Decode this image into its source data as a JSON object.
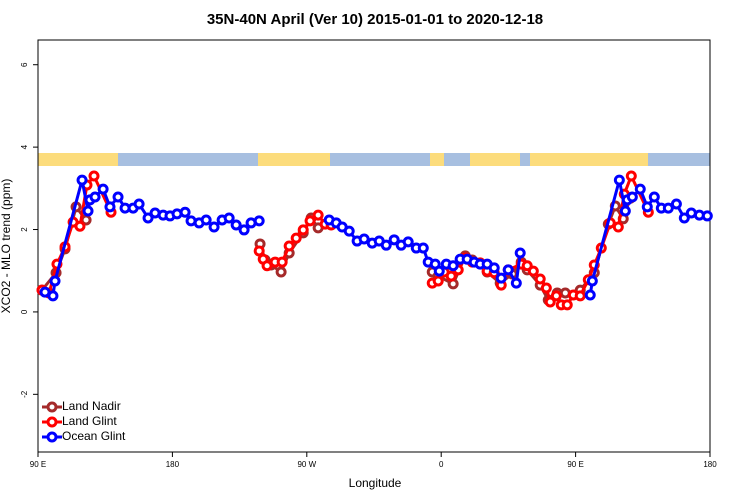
{
  "chart_data": {
    "type": "line",
    "title": "35N-40N April (Ver 10)   2015-01-01 to 2020-12-18",
    "x_label": "Longitude",
    "y_label": "XCO2 - MLO trend (ppm)",
    "xlim": [
      90,
      540
    ],
    "xticks": [
      {
        "value": 90,
        "label": "90 E"
      },
      180,
      {
        "value": 270,
        "label": "90 W"
      },
      {
        "value": 360,
        "label": "0"
      },
      {
        "value": 450,
        "label": "90 E"
      },
      {
        "value": 540,
        "label": "180"
      }
    ],
    "ylim": [
      -3.4,
      6.6
    ],
    "yticks": [
      -2,
      0,
      2,
      4,
      6
    ],
    "legend": "bottom-left",
    "series": [
      {
        "name": "Land Nadir",
        "color": "#a52a2a",
        "x": [
          92.7,
          102.1,
          108.1,
          115.5,
          122.2,
          180,
          238.7,
          242.1,
          246.1,
          252.8,
          258.2,
          267.6,
          272.9,
          277.6,
          286.3,
          380,
          354,
          358,
          368,
          376.1,
          380.8,
          390.8,
          399.5,
          407.6,
          413.6,
          417.6,
          426.3,
          431.7,
          437.7,
          443.1,
          453.1,
          462.5,
          471.9,
          476.6,
          481.9,
          486.6
        ],
        "values": [
          0.53,
          0.95,
          1.53,
          2.55,
          2.23,
          null,
          1.65,
          1.26,
          1.14,
          0.97,
          1.43,
          1.92,
          2.28,
          2.04,
          2.13,
          null,
          0.97,
          0.87,
          0.68,
          1.36,
          1.26,
          0.97,
          0.7,
          0.92,
          1.21,
          1.02,
          0.65,
          0.29,
          0.46,
          0.46,
          0.53,
          0.95,
          2.13,
          2.57,
          2.26,
          2.76
        ]
      },
      {
        "name": "Land Glint",
        "color": "#ff0000",
        "x": [
          92.7,
          97.4,
          102.7,
          108.1,
          113.5,
          118.1,
          122.8,
          127.5,
          138.9,
          190,
          238.1,
          240.8,
          243.4,
          248.8,
          253.5,
          258.2,
          262.9,
          267.6,
          272.2,
          277.6,
          282.3,
          286.3,
          320,
          354,
          358,
          362,
          366.7,
          371.4,
          376.1,
          380.8,
          386.1,
          390.8,
          395.5,
          400.2,
          404.9,
          413.6,
          417.6,
          421.7,
          426.3,
          430.4,
          433,
          437.1,
          440.4,
          444.4,
          448.5,
          453.1,
          458.5,
          462.5,
          467.2,
          473.2,
          478.6,
          482.6,
          487.3,
          498.7
        ],
        "values": [
          0.53,
          0.46,
          1.16,
          1.58,
          2.18,
          2.08,
          3.08,
          3.3,
          2.42,
          null,
          1.48,
          1.28,
          1.12,
          1.21,
          1.21,
          1.6,
          1.79,
          1.99,
          2.21,
          2.35,
          2.13,
          2.11,
          null,
          0.7,
          0.75,
          0.97,
          0.87,
          1.02,
          1.31,
          1.21,
          1.19,
          0.99,
          0.95,
          0.65,
          1.02,
          1.16,
          1.12,
          0.99,
          0.8,
          0.58,
          0.24,
          0.39,
          0.17,
          0.17,
          0.41,
          0.39,
          0.78,
          1.14,
          1.55,
          2.16,
          2.06,
          2.86,
          3.3,
          2.42
        ]
      },
      {
        "name": "Ocean Glint",
        "color": "#0000ff",
        "x": [
          94.7,
          100,
          101.4,
          119.5,
          123.5,
          124.8,
          128.2,
          133.6,
          138.2,
          143.6,
          148.3,
          153.7,
          157.7,
          163.7,
          168.4,
          173.8,
          178.4,
          183.1,
          188.5,
          192.5,
          197.9,
          202.6,
          207.9,
          213.3,
          218,
          222.7,
          228,
          232.7,
          238.1,
          260,
          285,
          289.7,
          293.7,
          298.4,
          303.7,
          308.4,
          313.8,
          318.5,
          323.2,
          328.5,
          333.2,
          337.9,
          343.3,
          348,
          351.3,
          356,
          358.7,
          363.4,
          368,
          372.7,
          377.4,
          382.1,
          386.1,
          390.8,
          395.5,
          400.2,
          404.9,
          410.3,
          412.9,
          440,
          459.8,
          461.2,
          479.3,
          483.3,
          484.6,
          488,
          493.3,
          498,
          502.7,
          507.4,
          512.1,
          517.5,
          522.8,
          527.5,
          532.9,
          538.2
        ],
        "values": [
          0.48,
          0.39,
          0.75,
          3.2,
          2.45,
          2.72,
          2.79,
          2.98,
          2.55,
          2.79,
          2.52,
          2.52,
          2.62,
          2.28,
          2.4,
          2.35,
          2.33,
          2.38,
          2.42,
          2.21,
          2.16,
          2.23,
          2.06,
          2.23,
          2.28,
          2.11,
          1.99,
          2.16,
          2.21,
          null,
          2.23,
          2.16,
          2.06,
          1.96,
          1.72,
          1.77,
          1.67,
          1.72,
          1.62,
          1.75,
          1.62,
          1.7,
          1.55,
          1.55,
          1.21,
          1.16,
          0.99,
          1.16,
          1.12,
          1.28,
          1.28,
          1.21,
          1.16,
          1.16,
          1.07,
          0.82,
          1.02,
          0.7,
          1.43,
          null,
          0.41,
          0.75,
          3.2,
          2.45,
          2.72,
          2.79,
          2.98,
          2.55,
          2.79,
          2.52,
          2.52,
          2.62,
          2.28,
          2.4,
          2.35,
          2.33
        ]
      }
    ]
  }
}
